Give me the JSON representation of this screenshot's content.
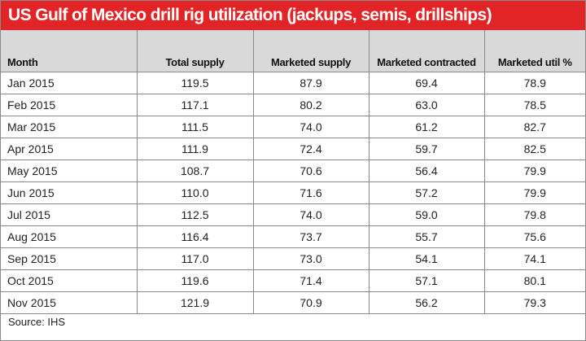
{
  "title": "US Gulf of Mexico drill rig utilization (jackups, semis, drillships)",
  "columns": [
    "Month",
    "Total supply",
    "Marketed supply",
    "Marketed contracted",
    "Marketed util %"
  ],
  "rows": [
    [
      "Jan 2015",
      "119.5",
      "87.9",
      "69.4",
      "78.9"
    ],
    [
      "Feb 2015",
      "117.1",
      "80.2",
      "63.0",
      "78.5"
    ],
    [
      "Mar 2015",
      "111.5",
      "74.0",
      "61.2",
      "82.7"
    ],
    [
      "Apr 2015",
      "111.9",
      "72.4",
      "59.7",
      "82.5"
    ],
    [
      "May 2015",
      "108.7",
      "70.6",
      "56.4",
      "79.9"
    ],
    [
      "Jun 2015",
      "110.0",
      "71.6",
      "57.2",
      "79.9"
    ],
    [
      "Jul 2015",
      "112.5",
      "74.0",
      "59.0",
      "79.8"
    ],
    [
      "Aug 2015",
      "116.4",
      "73.7",
      "55.7",
      "75.6"
    ],
    [
      "Sep 2015",
      "117.0",
      "73.0",
      "54.1",
      "74.1"
    ],
    [
      "Oct 2015",
      "119.6",
      "71.4",
      "57.1",
      "80.1"
    ],
    [
      "Nov 2015",
      "121.9",
      "70.9",
      "56.2",
      "79.3"
    ]
  ],
  "source": "Source: IHS",
  "colors": {
    "title_background": "#e32426",
    "header_background": "#d9d9d9",
    "grid": "#8a8a8a"
  }
}
